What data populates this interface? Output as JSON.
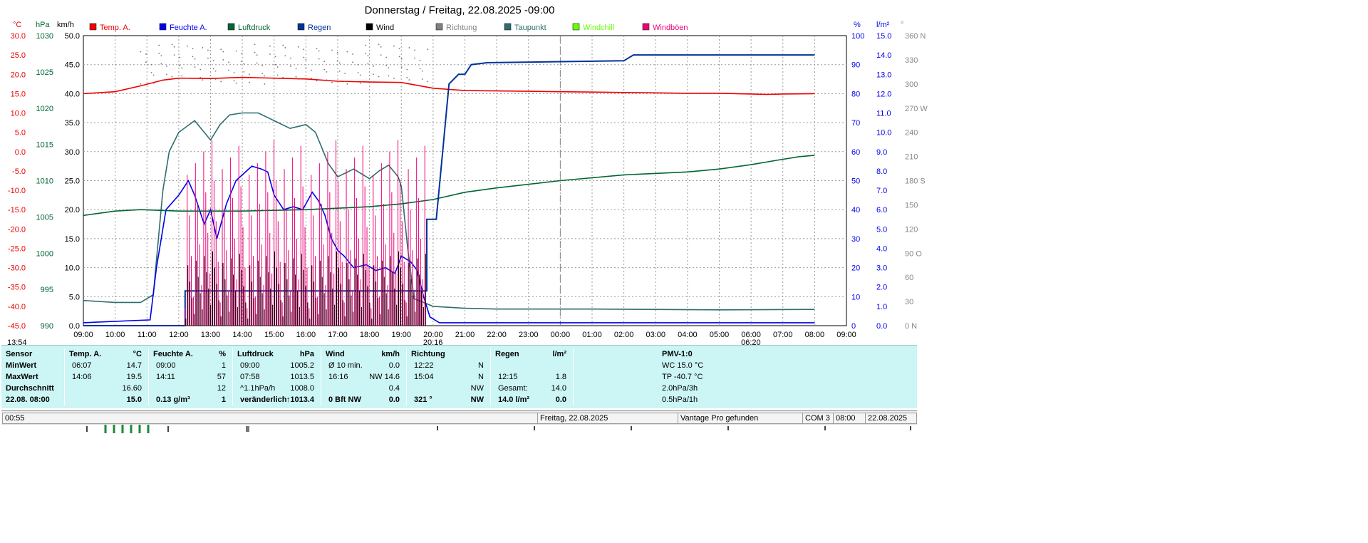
{
  "title": "Donnerstag / Freitag, 22.08.2025  -09:00",
  "chart_data": {
    "type": "line",
    "x_ticks": [
      "09:00",
      "10:00",
      "11:00",
      "12:00",
      "13:00",
      "14:00",
      "15:00",
      "16:00",
      "17:00",
      "18:00",
      "19:00",
      "20:00",
      "21:00",
      "22:00",
      "23:00",
      "00:00",
      "01:00",
      "02:00",
      "03:00",
      "04:00",
      "05:00",
      "06:00",
      "07:00",
      "08:00",
      "09:00"
    ],
    "axes": {
      "temp": {
        "unit": "°C",
        "range": [
          -45,
          30
        ],
        "ticks": [
          "30.0",
          "25.0",
          "20.0",
          "15.0",
          "10.0",
          "5.0",
          "0.0",
          "-5.0",
          "-10.0",
          "-15.0",
          "-20.0",
          "-25.0",
          "-30.0",
          "-35.0",
          "-40.0",
          "-45.0"
        ]
      },
      "pressure": {
        "unit": "hPa",
        "range": [
          990,
          1030
        ],
        "ticks": [
          "1030",
          "1025",
          "1020",
          "1015",
          "1010",
          "1005",
          "1000",
          "995",
          "990"
        ]
      },
      "wind": {
        "unit": "km/h",
        "range": [
          0,
          50
        ],
        "ticks": [
          "50.0",
          "45.0",
          "40.0",
          "35.0",
          "30.0",
          "25.0",
          "20.0",
          "15.0",
          "10.0",
          "5.0",
          "0.0"
        ]
      },
      "humidity": {
        "unit": "%",
        "range": [
          0,
          100
        ],
        "ticks": [
          "100",
          "90",
          "80",
          "70",
          "60",
          "50",
          "40",
          "30",
          "20",
          "10",
          "0"
        ]
      },
      "rain": {
        "unit": "l/m²",
        "range": [
          0,
          15
        ],
        "ticks": [
          "15.0",
          "14.0",
          "13.0",
          "12.0",
          "11.0",
          "10.0",
          "9.0",
          "8.0",
          "7.0",
          "6.0",
          "5.0",
          "4.0",
          "3.0",
          "2.0",
          "1.0",
          "0.0"
        ]
      },
      "direction": {
        "unit": "°",
        "range": [
          0,
          360
        ],
        "ticks": [
          "360 N",
          "330",
          "300",
          "270 W",
          "240",
          "210",
          "180 S",
          "150",
          "120",
          "90 O",
          "60",
          "30",
          "0 N"
        ]
      }
    },
    "legend": [
      {
        "name": "Temp. A.",
        "color": "#ee0000"
      },
      {
        "name": "Feuchte A.",
        "color": "#0000ee"
      },
      {
        "name": "Luftdruck",
        "color": "#006633"
      },
      {
        "name": "Regen",
        "color": "#003399"
      },
      {
        "name": "Wind",
        "color": "#000000"
      },
      {
        "name": "Richtung",
        "color": "#808080"
      },
      {
        "name": "Taupunkt",
        "color": "#2e6e6e"
      },
      {
        "name": "Windchill",
        "color": "#66ff00"
      },
      {
        "name": "Windböen",
        "color": "#ee0077"
      }
    ],
    "series": [
      {
        "name": "Temp. A.",
        "axis": "temp",
        "points": [
          [
            0,
            15.0
          ],
          [
            1,
            15.5
          ],
          [
            1.8,
            17.0
          ],
          [
            2.5,
            18.5
          ],
          [
            3,
            19.0
          ],
          [
            4,
            18.9
          ],
          [
            5,
            19.2
          ],
          [
            6,
            19.0
          ],
          [
            7,
            18.8
          ],
          [
            8,
            18.2
          ],
          [
            9,
            18.0
          ],
          [
            10,
            17.9
          ],
          [
            11,
            16.4
          ],
          [
            12,
            15.8
          ],
          [
            13,
            15.7
          ],
          [
            14,
            15.6
          ],
          [
            15,
            15.5
          ],
          [
            16,
            15.4
          ],
          [
            17,
            15.3
          ],
          [
            18,
            15.2
          ],
          [
            19,
            15.1
          ],
          [
            20,
            15.1
          ],
          [
            21,
            14.9
          ],
          [
            21.5,
            14.8
          ],
          [
            22,
            14.9
          ],
          [
            23,
            15.0
          ]
        ]
      },
      {
        "name": "Taupunkt",
        "axis": "temp",
        "points": [
          [
            0,
            -38.5
          ],
          [
            1,
            -39.0
          ],
          [
            1.8,
            -39.0
          ],
          [
            2.2,
            -37.0
          ],
          [
            2.3,
            -28.0
          ],
          [
            2.5,
            -10.0
          ],
          [
            2.7,
            0.0
          ],
          [
            3,
            5.0
          ],
          [
            3.5,
            8.0
          ],
          [
            4,
            3.0
          ],
          [
            4.3,
            7.0
          ],
          [
            4.6,
            9.5
          ],
          [
            5,
            10.0
          ],
          [
            5.5,
            10.0
          ],
          [
            6,
            8.0
          ],
          [
            6.5,
            6.0
          ],
          [
            7,
            7.0
          ],
          [
            7.3,
            5.0
          ],
          [
            7.7,
            -3.0
          ],
          [
            8,
            -6.5
          ],
          [
            8.5,
            -4.5
          ],
          [
            9,
            -7.0
          ],
          [
            9.3,
            -5.0
          ],
          [
            9.6,
            -3.5
          ],
          [
            9.9,
            -6.5
          ],
          [
            10,
            -9.0
          ],
          [
            10.2,
            -25.0
          ],
          [
            10.4,
            -38.0
          ],
          [
            11,
            -40.0
          ],
          [
            12,
            -40.5
          ],
          [
            13,
            -40.7
          ],
          [
            16,
            -40.7
          ],
          [
            20,
            -40.9
          ],
          [
            23,
            -40.8
          ]
        ]
      },
      {
        "name": "Feuchte A.",
        "axis": "humidity",
        "points": [
          [
            0,
            1
          ],
          [
            2.1,
            2
          ],
          [
            2.3,
            20
          ],
          [
            2.6,
            40
          ],
          [
            3,
            45
          ],
          [
            3.3,
            50
          ],
          [
            3.5,
            45
          ],
          [
            3.8,
            35
          ],
          [
            4,
            40
          ],
          [
            4.2,
            30
          ],
          [
            4.5,
            42
          ],
          [
            4.8,
            50
          ],
          [
            5,
            52
          ],
          [
            5.3,
            55
          ],
          [
            5.6,
            54
          ],
          [
            5.8,
            53
          ],
          [
            6,
            45
          ],
          [
            6.3,
            40
          ],
          [
            6.6,
            41
          ],
          [
            6.9,
            40
          ],
          [
            7.2,
            46
          ],
          [
            7.4,
            43
          ],
          [
            7.6,
            38
          ],
          [
            7.8,
            30
          ],
          [
            8,
            26
          ],
          [
            8.2,
            24
          ],
          [
            8.5,
            20
          ],
          [
            8.9,
            21
          ],
          [
            9.2,
            19
          ],
          [
            9.5,
            20
          ],
          [
            9.8,
            18
          ],
          [
            10,
            24
          ],
          [
            10.3,
            22
          ],
          [
            10.5,
            19
          ],
          [
            10.7,
            10
          ],
          [
            10.9,
            3
          ],
          [
            11.2,
            1
          ],
          [
            12,
            1
          ],
          [
            23,
            1
          ]
        ]
      },
      {
        "name": "Luftdruck",
        "axis": "pressure",
        "points": [
          [
            0,
            1005.2
          ],
          [
            1,
            1005.8
          ],
          [
            1.8,
            1006.0
          ],
          [
            3,
            1005.8
          ],
          [
            5,
            1005.8
          ],
          [
            7,
            1006.0
          ],
          [
            9,
            1006.4
          ],
          [
            10,
            1006.8
          ],
          [
            11,
            1007.4
          ],
          [
            12,
            1008.4
          ],
          [
            13,
            1009.0
          ],
          [
            15,
            1010.0
          ],
          [
            17,
            1010.8
          ],
          [
            19,
            1011.2
          ],
          [
            20,
            1011.6
          ],
          [
            21,
            1012.2
          ],
          [
            21.8,
            1012.8
          ],
          [
            22.5,
            1013.3
          ],
          [
            23,
            1013.5
          ]
        ]
      },
      {
        "name": "Regen",
        "axis": "rain",
        "points": [
          [
            0,
            0
          ],
          [
            3.2,
            0
          ],
          [
            3.2,
            1.8
          ],
          [
            10.8,
            1.8
          ],
          [
            10.8,
            5.5
          ],
          [
            11.1,
            5.5
          ],
          [
            11.3,
            9.0
          ],
          [
            11.5,
            12.5
          ],
          [
            11.8,
            13.0
          ],
          [
            12,
            13.0
          ],
          [
            12.2,
            13.5
          ],
          [
            12.7,
            13.6
          ],
          [
            17,
            13.7
          ],
          [
            17.3,
            14.0
          ],
          [
            23,
            14.0
          ]
        ]
      }
    ],
    "annotations": [
      "13:54",
      "20:16",
      "06:20"
    ]
  },
  "stats": {
    "sensor": {
      "header": "Sensor",
      "rows": [
        "MinWert",
        "MaxWert",
        "Durchschnitt",
        "22.08. 08:00"
      ]
    },
    "temp": {
      "header": "Temp. A.",
      "unit": "°C",
      "rows": [
        [
          "06:07",
          "14.7"
        ],
        [
          "14:06",
          "19.5"
        ],
        [
          "",
          "16.60"
        ],
        [
          "",
          "15.0"
        ]
      ]
    },
    "humidity": {
      "header": "Feuchte A.",
      "unit": "%",
      "rows": [
        [
          "09:00",
          "1"
        ],
        [
          "14:11",
          "57"
        ],
        [
          "",
          "12"
        ],
        [
          "0.13 g/m³",
          "1"
        ]
      ]
    },
    "pressure": {
      "header": "Luftdruck",
      "unit": "hPa",
      "rows": [
        [
          "09:00",
          "1005.2"
        ],
        [
          "07:58",
          "1013.5"
        ],
        [
          "^1.1hPa/h",
          "1008.0"
        ],
        [
          "veränderlich",
          "↑1013.4"
        ]
      ]
    },
    "wind": {
      "header": "Wind",
      "unit": "km/h",
      "rows": [
        [
          "Ø 10 min.",
          "0.0"
        ],
        [
          "16:16",
          "NW 14.6"
        ],
        [
          "",
          "0.4"
        ],
        [
          "0 Bft NW",
          "0.0"
        ]
      ]
    },
    "direction": {
      "header": "Richtung",
      "rows": [
        [
          "12:22",
          "N"
        ],
        [
          "15:04",
          "N"
        ],
        [
          "",
          "NW"
        ],
        [
          "321 °",
          "NW"
        ]
      ]
    },
    "rain": {
      "header": "Regen",
      "unit": "l/m²",
      "rows": [
        [
          "",
          ""
        ],
        [
          "12:15",
          "1.8"
        ],
        [
          "Gesamt:",
          "14.0"
        ],
        [
          "14.0 l/m²",
          "0.0"
        ]
      ]
    },
    "pmv": {
      "header": "PMV-1:0",
      "rows": [
        "WC 15.0 °C",
        "TP -40.7 °C",
        "2.0hPa/3h",
        "0.5hPa/1h"
      ]
    }
  },
  "statusbar": {
    "time": "00:55",
    "date": "Freitag, 22.08.2025",
    "status": "Vantage Pro gefunden",
    "port": "COM 3",
    "clock": "08:00",
    "date2": "22.08.2025"
  }
}
